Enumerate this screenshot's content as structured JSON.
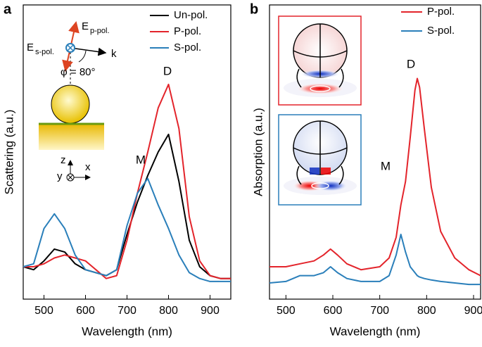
{
  "chart_data": [
    {
      "type": "line",
      "panel_label": "a",
      "xlabel": "Wavelength (nm)",
      "ylabel": "Scattering (a.u.)",
      "x": [
        450,
        475,
        500,
        525,
        550,
        575,
        600,
        625,
        650,
        675,
        700,
        725,
        750,
        775,
        800,
        825,
        850,
        875,
        900,
        925,
        950
      ],
      "series": [
        {
          "name": "Un-pol.",
          "color": "#000000",
          "values": [
            0.11,
            0.1,
            0.13,
            0.17,
            0.16,
            0.12,
            0.1,
            0.09,
            0.08,
            0.1,
            0.22,
            0.33,
            0.42,
            0.5,
            0.56,
            0.4,
            0.2,
            0.11,
            0.08,
            0.07,
            0.07
          ]
        },
        {
          "name": "P-pol.",
          "color": "#e3242b",
          "values": [
            0.11,
            0.11,
            0.12,
            0.14,
            0.15,
            0.14,
            0.13,
            0.1,
            0.07,
            0.08,
            0.2,
            0.36,
            0.5,
            0.65,
            0.73,
            0.58,
            0.28,
            0.13,
            0.08,
            0.07,
            0.07
          ]
        },
        {
          "name": "S-pol.",
          "color": "#2a7fba",
          "values": [
            0.11,
            0.12,
            0.24,
            0.29,
            0.24,
            0.15,
            0.1,
            0.09,
            0.08,
            0.1,
            0.25,
            0.36,
            0.41,
            0.32,
            0.24,
            0.15,
            0.09,
            0.07,
            0.06,
            0.06,
            0.06
          ]
        }
      ],
      "xlim": [
        450,
        950
      ],
      "xticks": [
        500,
        600,
        700,
        800,
        900
      ],
      "ylim": [
        0,
        1
      ],
      "annotations": [
        "D",
        "M",
        "E",
        "p-pol.",
        "E",
        "s-pol.",
        "k",
        "φ = 80°",
        "z",
        "y",
        "x"
      ]
    },
    {
      "type": "line",
      "panel_label": "b",
      "xlabel": "Wavelength (nm)",
      "ylabel": "Absorption (a.u.)",
      "x": [
        465,
        500,
        530,
        560,
        580,
        595,
        610,
        630,
        660,
        700,
        720,
        735,
        745,
        755,
        765,
        775,
        780,
        785,
        795,
        810,
        830,
        860,
        890,
        915
      ],
      "series": [
        {
          "name": "P-pol.",
          "color": "#e3242b",
          "values": [
            0.11,
            0.11,
            0.12,
            0.13,
            0.15,
            0.17,
            0.15,
            0.12,
            0.1,
            0.11,
            0.14,
            0.21,
            0.32,
            0.4,
            0.55,
            0.71,
            0.75,
            0.72,
            0.58,
            0.38,
            0.23,
            0.14,
            0.1,
            0.08
          ]
        },
        {
          "name": "S-pol.",
          "color": "#2a7fba",
          "values": [
            0.055,
            0.06,
            0.08,
            0.08,
            0.09,
            0.11,
            0.09,
            0.07,
            0.06,
            0.06,
            0.08,
            0.15,
            0.22,
            0.16,
            0.11,
            0.09,
            0.08,
            0.075,
            0.07,
            0.065,
            0.06,
            0.055,
            0.05,
            0.05
          ]
        }
      ],
      "xlim": [
        465,
        915
      ],
      "xticks": [
        500,
        600,
        700,
        800,
        900
      ],
      "ylim": [
        0,
        1
      ],
      "annotations": [
        "M",
        "D"
      ]
    }
  ]
}
